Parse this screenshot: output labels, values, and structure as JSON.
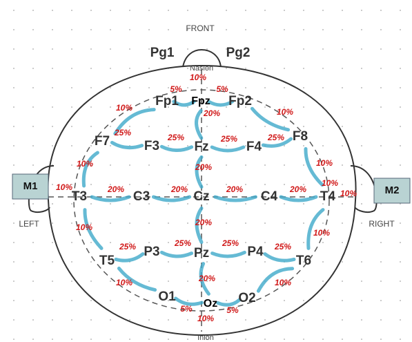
{
  "labels": {
    "front": "FRONT",
    "left": "LEFT",
    "right": "RIGHT",
    "nasion": "Nasion",
    "inion": "Inion"
  },
  "mastoids": [
    "M1",
    "M2"
  ],
  "electrodes": [
    "Pg1",
    "Pg2",
    "Fpz",
    "Fp1",
    "Fp2",
    "F7",
    "F3",
    "Fz",
    "F4",
    "F8",
    "T3",
    "C3",
    "Cz",
    "C4",
    "T4",
    "T5",
    "P3",
    "Pz",
    "P4",
    "T6",
    "O1",
    "Oz",
    "O2"
  ],
  "percentages": [
    "10%",
    "5%",
    "5%",
    "10%",
    "10%",
    "20%",
    "25%",
    "25%",
    "25%",
    "25%",
    "10%",
    "10%",
    "20%",
    "10%",
    "20%",
    "20%",
    "20%",
    "20%",
    "10%",
    "10%",
    "20%",
    "10%",
    "10%",
    "25%",
    "25%",
    "25%",
    "25%",
    "20%",
    "10%",
    "10%",
    "5%",
    "5%",
    "10%"
  ]
}
